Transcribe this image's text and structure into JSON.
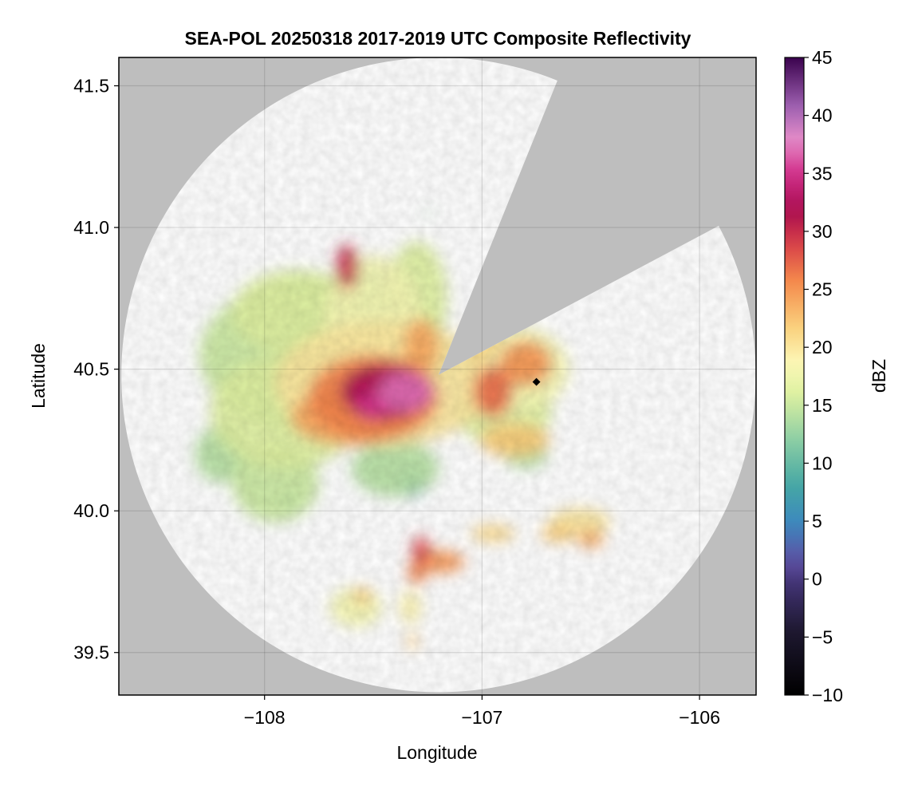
{
  "chart_data": {
    "type": "heatmap",
    "title": "SEA-POL 20250318 2017-2019 UTC Composite Reflectivity",
    "xlabel": "Longitude",
    "ylabel": "Latitude",
    "xlim": [
      -108.67,
      -105.74
    ],
    "ylim": [
      39.35,
      41.6
    ],
    "xticks": [
      -108,
      -107,
      -106
    ],
    "yticks": [
      39.5,
      40.0,
      40.5,
      41.0,
      41.5
    ],
    "grid": true,
    "background_color": "#bebebe",
    "radar": {
      "center": [
        -107.2,
        40.48
      ],
      "range_lat_deg": 1.12,
      "blocked_sector_azimuth_deg": [
        22,
        62
      ]
    },
    "colorbar": {
      "label": "dBZ",
      "min": -10,
      "max": 45,
      "ticks": [
        -10,
        -5,
        0,
        5,
        10,
        15,
        20,
        25,
        30,
        35,
        40,
        45
      ],
      "colormap": "spectral"
    },
    "marker": {
      "lon": -106.75,
      "lat": 40.455,
      "color": "#000000"
    },
    "echo_regions": [
      {
        "lon": -107.72,
        "lat": 40.55,
        "rx": 0.58,
        "ry": 0.28,
        "dbz": 15
      },
      {
        "lon": -107.85,
        "lat": 40.7,
        "rx": 0.3,
        "ry": 0.15,
        "dbz": 16
      },
      {
        "lon": -107.9,
        "lat": 40.35,
        "rx": 0.35,
        "ry": 0.2,
        "dbz": 16
      },
      {
        "lon": -107.45,
        "lat": 40.45,
        "rx": 0.5,
        "ry": 0.22,
        "dbz": 20
      },
      {
        "lon": -107.5,
        "lat": 40.68,
        "rx": 0.22,
        "ry": 0.22,
        "dbz": 18
      },
      {
        "lon": -107.3,
        "lat": 40.75,
        "rx": 0.14,
        "ry": 0.2,
        "dbz": 16
      },
      {
        "lon": -107.8,
        "lat": 40.58,
        "rx": 0.1,
        "ry": 0.06,
        "dbz": 9
      },
      {
        "lon": -107.55,
        "lat": 40.8,
        "rx": 0.08,
        "ry": 0.06,
        "dbz": 10
      },
      {
        "lon": -107.85,
        "lat": 40.8,
        "rx": 0.05,
        "ry": 0.04,
        "dbz": 11
      },
      {
        "lon": -107.5,
        "lat": 40.4,
        "rx": 0.3,
        "ry": 0.15,
        "dbz": 26
      },
      {
        "lon": -107.6,
        "lat": 40.33,
        "rx": 0.28,
        "ry": 0.1,
        "dbz": 24
      },
      {
        "lon": -107.45,
        "lat": 40.42,
        "rx": 0.2,
        "ry": 0.1,
        "dbz": 32
      },
      {
        "lon": -107.35,
        "lat": 40.42,
        "rx": 0.13,
        "ry": 0.07,
        "dbz": 37
      },
      {
        "lon": -107.5,
        "lat": 40.37,
        "rx": 0.08,
        "ry": 0.05,
        "dbz": 35
      },
      {
        "lon": -107.62,
        "lat": 40.86,
        "rx": 0.05,
        "ry": 0.08,
        "dbz": 30
      },
      {
        "lon": -107.28,
        "lat": 40.58,
        "rx": 0.08,
        "ry": 0.1,
        "dbz": 24
      },
      {
        "lon": -107.4,
        "lat": 40.15,
        "rx": 0.2,
        "ry": 0.1,
        "dbz": 14
      },
      {
        "lon": -107.95,
        "lat": 40.1,
        "rx": 0.2,
        "ry": 0.14,
        "dbz": 15
      },
      {
        "lon": -108.2,
        "lat": 40.2,
        "rx": 0.12,
        "ry": 0.1,
        "dbz": 14
      },
      {
        "lon": -107.32,
        "lat": 40.09,
        "rx": 0.06,
        "ry": 0.04,
        "dbz": 5
      },
      {
        "lon": -107.88,
        "lat": 40.03,
        "rx": 0.03,
        "ry": 0.03,
        "dbz": 7
      },
      {
        "lon": -106.85,
        "lat": 40.5,
        "rx": 0.25,
        "ry": 0.15,
        "dbz": 18
      },
      {
        "lon": -106.8,
        "lat": 40.52,
        "rx": 0.12,
        "ry": 0.08,
        "dbz": 25
      },
      {
        "lon": -106.9,
        "lat": 40.35,
        "rx": 0.22,
        "ry": 0.12,
        "dbz": 16
      },
      {
        "lon": -106.85,
        "lat": 40.25,
        "rx": 0.16,
        "ry": 0.06,
        "dbz": 22
      },
      {
        "lon": -106.95,
        "lat": 40.42,
        "rx": 0.09,
        "ry": 0.09,
        "dbz": 27
      },
      {
        "lon": -106.8,
        "lat": 40.2,
        "rx": 0.1,
        "ry": 0.05,
        "dbz": 14
      },
      {
        "lon": -107.0,
        "lat": 40.6,
        "rx": 0.08,
        "ry": 0.07,
        "dbz": 21
      },
      {
        "lon": -106.95,
        "lat": 39.92,
        "rx": 0.1,
        "ry": 0.03,
        "dbz": 21
      },
      {
        "lon": -106.65,
        "lat": 39.92,
        "rx": 0.08,
        "ry": 0.03,
        "dbz": 22
      },
      {
        "lon": -106.55,
        "lat": 39.96,
        "rx": 0.14,
        "ry": 0.05,
        "dbz": 20
      },
      {
        "lon": -106.5,
        "lat": 39.9,
        "rx": 0.06,
        "ry": 0.03,
        "dbz": 24
      },
      {
        "lon": -107.2,
        "lat": 39.82,
        "rx": 0.12,
        "ry": 0.04,
        "dbz": 25
      },
      {
        "lon": -107.28,
        "lat": 39.86,
        "rx": 0.04,
        "ry": 0.05,
        "dbz": 29
      },
      {
        "lon": -107.3,
        "lat": 39.78,
        "rx": 0.04,
        "ry": 0.04,
        "dbz": 26
      },
      {
        "lon": -107.58,
        "lat": 39.66,
        "rx": 0.12,
        "ry": 0.07,
        "dbz": 18
      },
      {
        "lon": -107.55,
        "lat": 39.7,
        "rx": 0.04,
        "ry": 0.03,
        "dbz": 22
      },
      {
        "lon": -107.33,
        "lat": 39.66,
        "rx": 0.05,
        "ry": 0.06,
        "dbz": 19
      },
      {
        "lon": -107.32,
        "lat": 39.54,
        "rx": 0.02,
        "ry": 0.03,
        "dbz": 22
      },
      {
        "lon": -107.25,
        "lat": 41.05,
        "rx": 0.01,
        "ry": 0.01,
        "dbz": 13
      }
    ]
  }
}
